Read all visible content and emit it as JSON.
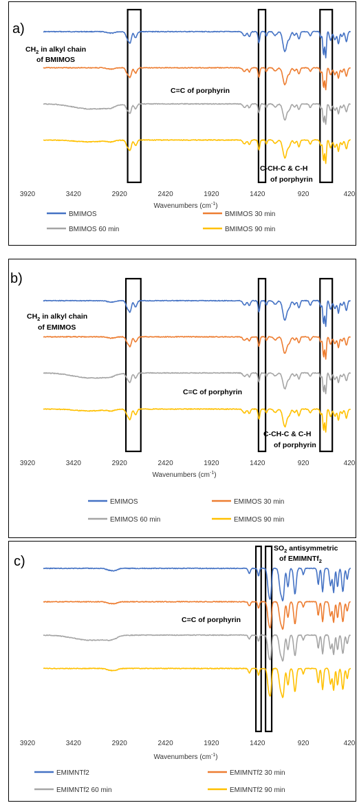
{
  "chart_data": [
    {
      "type": "line",
      "panel_label": "a)",
      "xlabel": "Wavenumbers (cm",
      "xlabel_sup": "-1",
      "xlabel_end": ")",
      "xlim": [
        3920,
        420
      ],
      "x_reversed": true,
      "x_ticks": [
        "3920",
        "3420",
        "2920",
        "2420",
        "1920",
        "1420",
        "920",
        "420"
      ],
      "y_ticks_shown": false,
      "legend_position": "bottom",
      "series": [
        {
          "name": "BMIMOS",
          "color": "#4472C4",
          "offset": 4.5
        },
        {
          "name": "BMIMOS 30 min",
          "color": "#ED7D31",
          "offset": 3.0
        },
        {
          "name": "BMIMOS 60 min",
          "color": "#A5A5A5",
          "offset": 1.5
        },
        {
          "name": "BMIMOS 90 min",
          "color": "#FFC000",
          "offset": 0.0
        }
      ],
      "annotations": [
        {
          "lines": [
            "CH",
            "2",
            " in alkyl chain",
            "of BMIMOS"
          ]
        },
        {
          "lines": [
            "C=C of porphyrin"
          ]
        },
        {
          "lines": [
            "C-CH-C & C-H",
            "of porphyrin"
          ]
        }
      ],
      "highlight_ranges": [
        [
          2960,
          2810
        ],
        [
          1470,
          1390
        ],
        [
          770,
          630
        ]
      ]
    },
    {
      "type": "line",
      "panel_label": "b)",
      "xlabel": "Wavenumbers (cm",
      "xlabel_sup": "-1",
      "xlabel_end": ")",
      "xlim": [
        3920,
        420
      ],
      "x_reversed": true,
      "x_ticks": [
        "3920",
        "3420",
        "2920",
        "2420",
        "1920",
        "1420",
        "920",
        "420"
      ],
      "y_ticks_shown": false,
      "legend_position": "bottom",
      "series": [
        {
          "name": "EMIMOS",
          "color": "#4472C4",
          "offset": 4.5
        },
        {
          "name": "EMIMOS 30 min",
          "color": "#ED7D31",
          "offset": 3.0
        },
        {
          "name": "EMIMOS 60 min",
          "color": "#A5A5A5",
          "offset": 1.5
        },
        {
          "name": "EMIMOS 90 min",
          "color": "#FFC000",
          "offset": 0.0
        }
      ],
      "annotations": [
        {
          "lines": [
            "CH",
            "2",
            " in alkyl chain",
            "of EMIMOS"
          ]
        },
        {
          "lines": [
            "C=C of porphyrin"
          ]
        },
        {
          "lines": [
            "C-CH-C & C-H",
            "of porphyrin"
          ]
        }
      ],
      "highlight_ranges": [
        [
          2980,
          2810
        ],
        [
          1470,
          1390
        ],
        [
          770,
          630
        ]
      ]
    },
    {
      "type": "line",
      "panel_label": "c)",
      "xlabel": "Wavenumbers (cm",
      "xlabel_sup": "-1",
      "xlabel_end": ")",
      "xlim": [
        3920,
        420
      ],
      "x_reversed": true,
      "x_ticks": [
        "3920",
        "3420",
        "2920",
        "2420",
        "1920",
        "1420",
        "920",
        "420"
      ],
      "y_ticks_shown": false,
      "legend_position": "bottom",
      "series": [
        {
          "name": "EMIMNTf2",
          "color": "#4472C4",
          "offset": 4.5
        },
        {
          "name": "EMIMNTf2 30 min",
          "color": "#ED7D31",
          "offset": 3.0
        },
        {
          "name": "EMIMNTf2 60 min",
          "color": "#A5A5A5",
          "offset": 1.5
        },
        {
          "name": "EMIMNTf2 90 min",
          "color": "#FFC000",
          "offset": 0.0
        }
      ],
      "annotations": [
        {
          "lines": [
            "C=C of porphyrin"
          ]
        },
        {
          "lines": [
            "SO",
            "2",
            " antisymmetric",
            "of EMIMNTf",
            "2"
          ]
        }
      ],
      "highlight_ranges": [
        [
          1500,
          1440
        ],
        [
          1390,
          1320
        ]
      ]
    }
  ]
}
